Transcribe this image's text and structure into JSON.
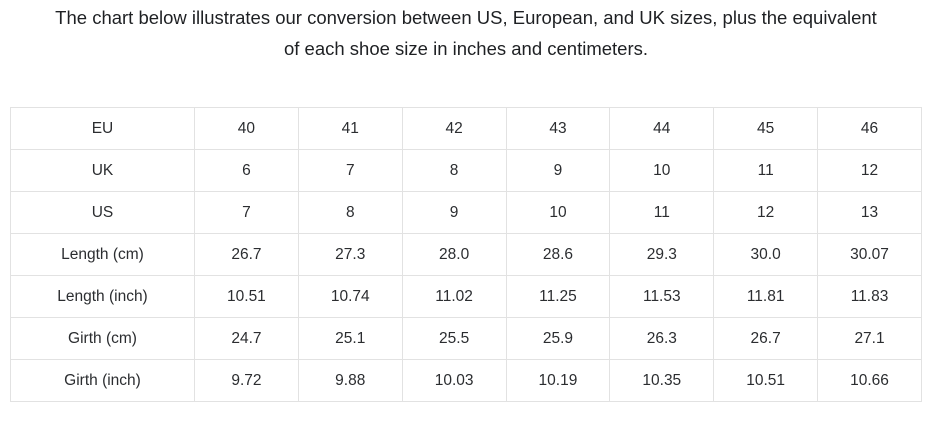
{
  "heading": "The chart below illustrates our conversion between US, European, and UK sizes, plus the equivalent\nof each shoe size in inches and centimeters.",
  "colors": {
    "background": "#ffffff",
    "text": "#26282b",
    "table_border": "#e2e2e2"
  },
  "chart_data": {
    "type": "table",
    "rows": [
      {
        "label": "EU",
        "values": [
          "40",
          "41",
          "42",
          "43",
          "44",
          "45",
          "46"
        ]
      },
      {
        "label": "UK",
        "values": [
          "6",
          "7",
          "8",
          "9",
          "10",
          "11",
          "12"
        ]
      },
      {
        "label": "US",
        "values": [
          "7",
          "8",
          "9",
          "10",
          "11",
          "12",
          "13"
        ]
      },
      {
        "label": "Length (cm)",
        "values": [
          "26.7",
          "27.3",
          "28.0",
          "28.6",
          "29.3",
          "30.0",
          "30.07"
        ]
      },
      {
        "label": "Length (inch)",
        "values": [
          "10.51",
          "10.74",
          "11.02",
          "11.25",
          "11.53",
          "11.81",
          "11.83"
        ]
      },
      {
        "label": "Girth (cm)",
        "values": [
          "24.7",
          "25.1",
          "25.5",
          "25.9",
          "26.3",
          "26.7",
          "27.1"
        ]
      },
      {
        "label": "Girth (inch)",
        "values": [
          "9.72",
          "9.88",
          "10.03",
          "10.19",
          "10.35",
          "10.51",
          "10.66"
        ]
      }
    ],
    "layout": {
      "grid": true,
      "cell_alignment": "center",
      "label_column_first": true
    }
  }
}
